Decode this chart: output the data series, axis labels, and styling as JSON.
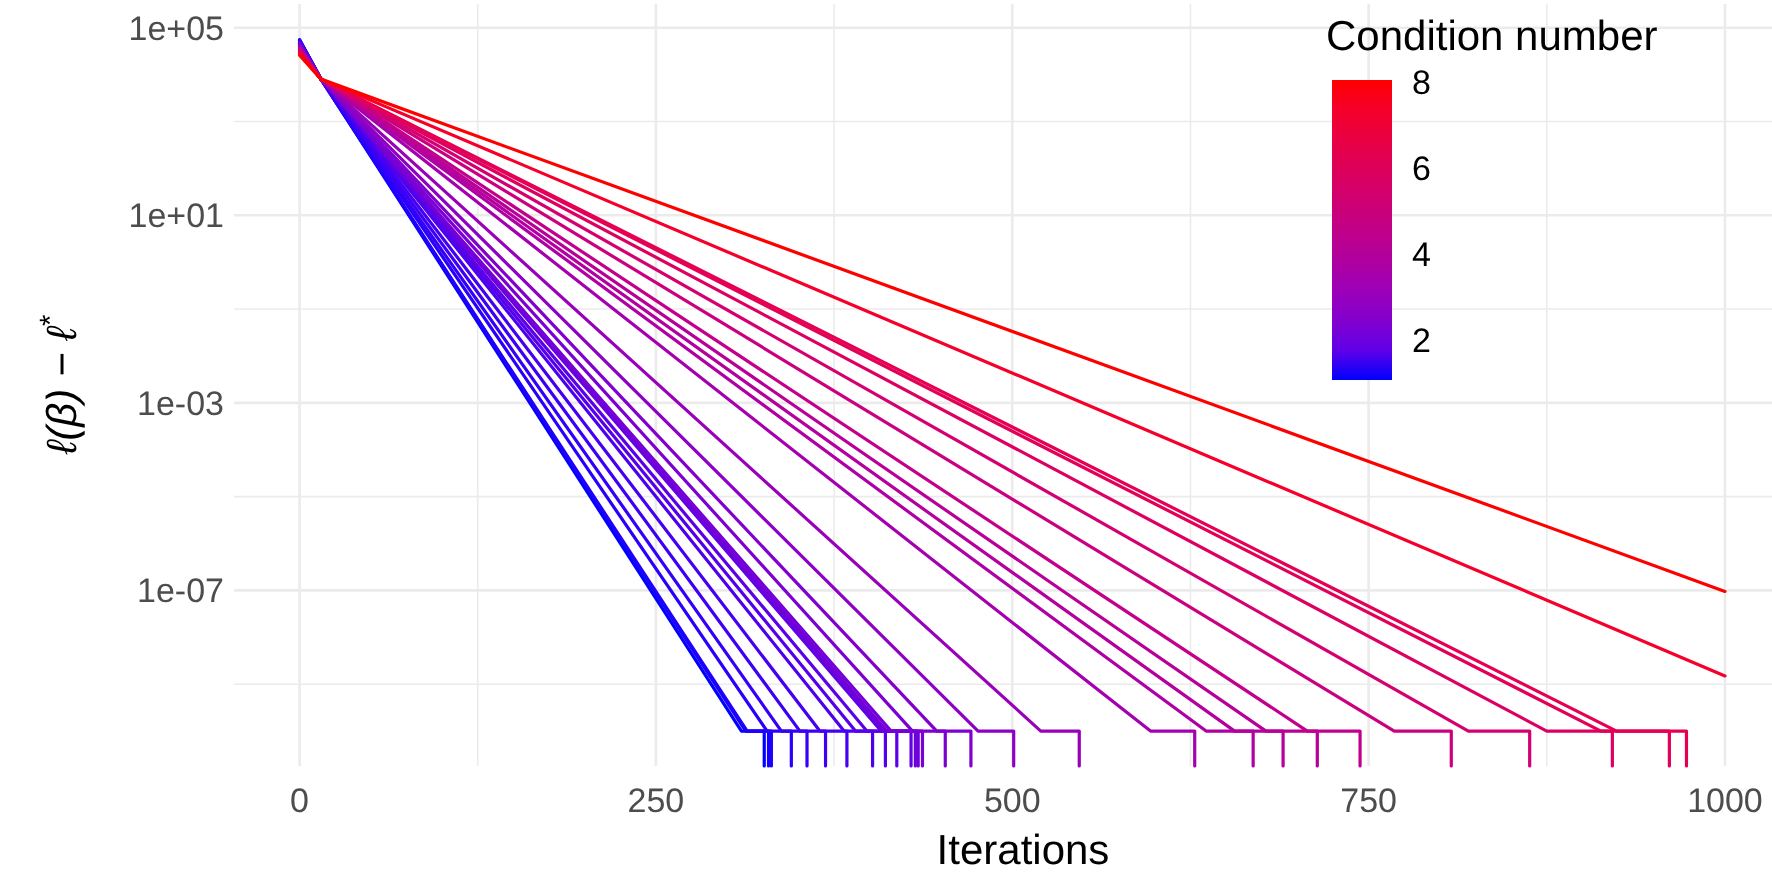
{
  "chart_data": {
    "type": "line",
    "xlabel": "Iterations",
    "ylabel": "ℓ(β) − ℓ$^{*}$",
    "clabel": "Condition number",
    "annotations": [
      "8",
      "6",
      "4",
      "2"
    ],
    "log": "y",
    "grid": true,
    "line_style": "solid",
    "marker": "none",
    "xlim": [
      -46,
      1033
    ],
    "xticks": [
      0,
      {
        "value": 125,
        "label": null
      },
      250,
      {
        "value": 375,
        "label": null
      },
      500,
      {
        "value": 625,
        "label": null
      },
      750,
      {
        "value": 875,
        "label": null
      },
      1000
    ],
    "ylim": [
      1.8e-11,
      320000
    ],
    "yticks": [
      {
        "value": 100000,
        "label": "1e+05"
      },
      {
        "value": 1000,
        "label": null
      },
      {
        "value": 10,
        "label": "1e+01"
      },
      {
        "value": 0.1,
        "label": null
      },
      {
        "value": 0.001,
        "label": "1e-03"
      },
      {
        "value": 1e-05,
        "label": null
      },
      {
        "value": 1e-07,
        "label": "1e-07"
      },
      {
        "value": 1e-09,
        "label": null
      }
    ],
    "series": [
      {
        "color": "#0000ff",
        "x": [
          0,
          15,
          310,
          326,
          326
        ],
        "values": [
          55000,
          8000,
          1e-10,
          1e-10,
          1.8e-11
        ]
      },
      {
        "color": "#1500fd",
        "x": [
          0,
          15,
          313,
          329,
          329
        ],
        "values": [
          55000,
          8000,
          1e-10,
          1e-10,
          1.8e-11
        ]
      },
      {
        "color": "#2000fc",
        "x": [
          0,
          15,
          314,
          331,
          331
        ],
        "values": [
          54000,
          8000,
          1e-10,
          1e-10,
          1.8e-11
        ]
      },
      {
        "color": "#2a00fb",
        "x": [
          0,
          15,
          328,
          345,
          345
        ],
        "values": [
          53000,
          8000,
          1e-10,
          1e-10,
          1.8e-11
        ]
      },
      {
        "color": "#3400f8",
        "x": [
          0,
          15,
          338,
          356,
          356
        ],
        "values": [
          52000,
          8000,
          1e-10,
          1e-10,
          1.8e-11
        ]
      },
      {
        "color": "#3d00f5",
        "x": [
          0,
          15,
          351,
          369,
          369
        ],
        "values": [
          51000,
          8000,
          1e-10,
          1e-10,
          1.8e-11
        ]
      },
      {
        "color": "#4500f2",
        "x": [
          0,
          15,
          365,
          384,
          384
        ],
        "values": [
          50000,
          8000,
          1e-10,
          1e-10,
          1.8e-11
        ]
      },
      {
        "color": "#4d00ee",
        "x": [
          0,
          15,
          382,
          402,
          402
        ],
        "values": [
          49000,
          8000,
          1e-10,
          1e-10,
          1.8e-11
        ]
      },
      {
        "color": "#5500ea",
        "x": [
          0,
          15,
          390,
          411,
          411
        ],
        "values": [
          48000,
          8000,
          1e-10,
          1e-10,
          1.8e-11
        ]
      },
      {
        "color": "#5c00e7",
        "x": [
          0,
          15,
          398,
          419,
          419
        ],
        "values": [
          47000,
          8000,
          1e-10,
          1e-10,
          1.8e-11
        ]
      },
      {
        "color": "#6300e3",
        "x": [
          0,
          15,
          408,
          429,
          429
        ],
        "values": [
          46000,
          8000,
          1e-10,
          1e-10,
          1.8e-11
        ]
      },
      {
        "color": "#6900df",
        "x": [
          0,
          15,
          410,
          432,
          432
        ],
        "values": [
          45000,
          8000,
          1e-10,
          1e-10,
          1.8e-11
        ]
      },
      {
        "color": "#6f00db",
        "x": [
          0,
          15,
          412,
          434,
          434
        ],
        "values": [
          44000,
          8000,
          1e-10,
          1e-10,
          1.8e-11
        ]
      },
      {
        "color": "#7600d7",
        "x": [
          0,
          15,
          415,
          437,
          437
        ],
        "values": [
          43000,
          8000,
          1e-10,
          1e-10,
          1.8e-11
        ]
      },
      {
        "color": "#7c00d2",
        "x": [
          0,
          15,
          430,
          453,
          453
        ],
        "values": [
          42000,
          8000,
          1e-10,
          1e-10,
          1.8e-11
        ]
      },
      {
        "color": "#8200ce",
        "x": [
          0,
          15,
          447,
          471,
          471
        ],
        "values": [
          41000,
          8000,
          1e-10,
          1e-10,
          1.8e-11
        ]
      },
      {
        "color": "#8e00c4",
        "x": [
          0,
          15,
          476,
          501,
          501
        ],
        "values": [
          40000,
          8000,
          1e-10,
          1e-10,
          1.8e-11
        ]
      },
      {
        "color": "#9900ba",
        "x": [
          0,
          15,
          520,
          547,
          547
        ],
        "values": [
          39000,
          8000,
          1e-10,
          1e-10,
          1.8e-11
        ]
      },
      {
        "color": "#a400af",
        "x": [
          0,
          15,
          597,
          628,
          628
        ],
        "values": [
          38000,
          8000,
          1e-10,
          1e-10,
          1.8e-11
        ]
      },
      {
        "color": "#ae00a4",
        "x": [
          0,
          15,
          636,
          669,
          669
        ],
        "values": [
          37000,
          8000,
          1e-10,
          1e-10,
          1.8e-11
        ]
      },
      {
        "color": "#b3009e",
        "x": [
          0,
          15,
          656,
          690,
          690
        ],
        "values": [
          36000,
          8000,
          1e-10,
          1e-10,
          1.8e-11
        ]
      },
      {
        "color": "#b80098",
        "x": [
          0,
          15,
          678,
          714,
          714
        ],
        "values": [
          35000,
          8000,
          1e-10,
          1e-10,
          1.8e-11
        ]
      },
      {
        "color": "#c2008c",
        "x": [
          0,
          15,
          707,
          744,
          744
        ],
        "values": [
          34000,
          8000,
          1e-10,
          1e-10,
          1.8e-11
        ]
      },
      {
        "color": "#cb007f",
        "x": [
          0,
          15,
          768,
          808,
          808
        ],
        "values": [
          33000,
          8000,
          1e-10,
          1e-10,
          1.8e-11
        ]
      },
      {
        "color": "#d40071",
        "x": [
          0,
          15,
          820,
          863,
          863
        ],
        "values": [
          32000,
          8000,
          1e-10,
          1e-10,
          1.8e-11
        ]
      },
      {
        "color": "#dc0063",
        "x": [
          0,
          15,
          875,
          921,
          921
        ],
        "values": [
          31000,
          8000,
          1e-10,
          1e-10,
          1.8e-11
        ]
      },
      {
        "color": "#e20058",
        "x": [
          0,
          15,
          913,
          961,
          961
        ],
        "values": [
          30000,
          8000,
          1e-10,
          1e-10,
          1.8e-11
        ]
      },
      {
        "color": "#e50053",
        "x": [
          0,
          15,
          924,
          973,
          973
        ],
        "values": [
          30000,
          8000,
          1e-10,
          1e-10,
          1.8e-11
        ]
      },
      {
        "color": "#f6002b",
        "x": [
          0,
          15,
          1000
        ],
        "values": [
          28000,
          8000,
          1.5e-09
        ]
      },
      {
        "color": "#ff0000",
        "x": [
          0,
          15,
          1000
        ],
        "values": [
          26000,
          8000,
          9.5e-08
        ]
      }
    ]
  }
}
